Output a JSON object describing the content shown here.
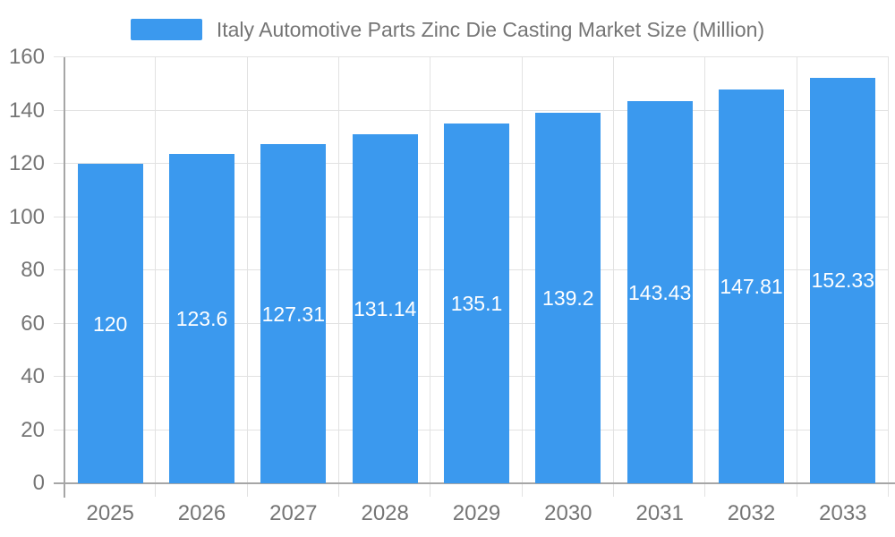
{
  "legend": {
    "label": "Italy Automotive Parts Zinc Die Casting Market Size (Million)"
  },
  "colors": {
    "background": "#FFFFFF",
    "bar": "#3B99EE",
    "grid": "#E2E2E2",
    "axis": "#A6A6A6",
    "text": "#757575",
    "value_label": "#FFFFFF"
  },
  "chart_data": {
    "type": "bar",
    "title": "Italy Automotive Parts Zinc Die Casting Market Size (Million)",
    "categories": [
      "2025",
      "2026",
      "2027",
      "2028",
      "2029",
      "2030",
      "2031",
      "2032",
      "2033"
    ],
    "values": [
      120,
      123.6,
      127.31,
      131.14,
      135.1,
      139.2,
      143.43,
      147.81,
      152.33
    ],
    "value_labels": [
      "120",
      "123.6",
      "127.31",
      "131.14",
      "135.1",
      "139.2",
      "143.43",
      "147.81",
      "152.33"
    ],
    "xlabel": "",
    "ylabel": "",
    "ylim": [
      0,
      160
    ],
    "yticks": [
      0,
      20,
      40,
      60,
      80,
      100,
      120,
      140,
      160
    ],
    "grid": true,
    "legend_position": "top",
    "value_label_position": "inside-center"
  }
}
